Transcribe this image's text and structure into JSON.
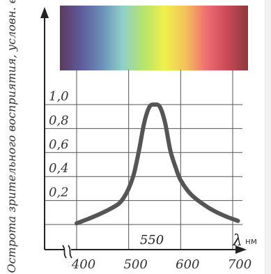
{
  "chart_data": {
    "type": "line",
    "title": "",
    "ylabel": "Острота зрительного восприятия, условн. ед.",
    "xlabel": "λ, нм",
    "x_unit": "нм",
    "x_symbol": "λ",
    "ylim": [
      0,
      1.1
    ],
    "xlim": [
      400,
      730
    ],
    "x_ticks": [
      400,
      500,
      600,
      700
    ],
    "y_ticks": [
      "0,2",
      "0,4",
      "0,6",
      "0,8",
      "1,0"
    ],
    "y_tick_values": [
      0.2,
      0.4,
      0.6,
      0.8,
      1.0
    ],
    "grid": true,
    "peak_label": "550",
    "series": [
      {
        "x": [
          400,
          430,
          460,
          480,
          490,
          500,
          510,
          520,
          530,
          540,
          550,
          560,
          570,
          580,
          590,
          600,
          620,
          650,
          680,
          710
        ],
        "y": [
          0.01,
          0.06,
          0.12,
          0.17,
          0.22,
          0.3,
          0.42,
          0.62,
          0.85,
          0.98,
          1.0,
          0.98,
          0.85,
          0.62,
          0.48,
          0.37,
          0.25,
          0.15,
          0.08,
          0.03
        ]
      }
    ],
    "spectrum_band": {
      "from_nm": 400,
      "to_nm": 730,
      "colors": [
        "#5a3a5c",
        "#5e5a9a",
        "#6a8fb8",
        "#8fd0c8",
        "#b6e46a",
        "#f0f04a",
        "#f3c25a",
        "#f06d73",
        "#c94a58",
        "#8a3a3c"
      ]
    }
  }
}
